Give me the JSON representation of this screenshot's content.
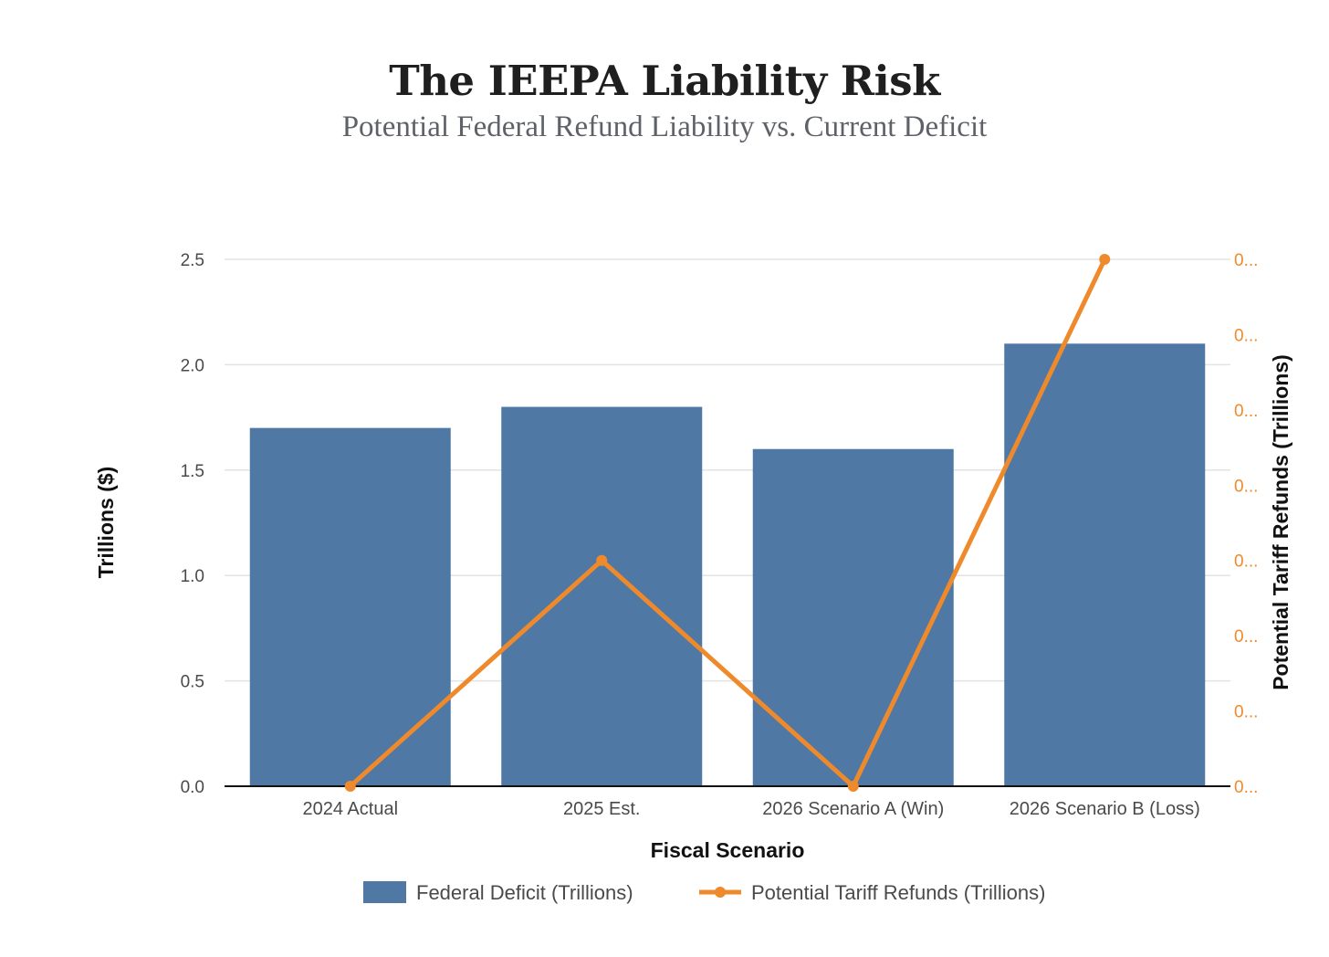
{
  "header": {
    "title": "The IEEPA Liability Risk",
    "subtitle": "Potential Federal Refund Liability vs. Current Deficit"
  },
  "colors": {
    "bar": "#4f78a5",
    "line": "#ef8a2c",
    "grid": "#e3e3e3",
    "axis": "#111111"
  },
  "chart_data": {
    "type": "bar",
    "title": "The IEEPA Liability Risk",
    "subtitle": "Potential Federal Refund Liability vs. Current Deficit",
    "xlabel": "Fiscal Scenario",
    "ylabel": "Trillions ($)",
    "y2label": "Potential Tariff Refunds (Trillions)",
    "categories": [
      "2024 Actual",
      "2025 Est.",
      "2026 Scenario A (Win)",
      "2026 Scenario B (Loss)"
    ],
    "ylim": [
      0,
      2.5
    ],
    "yticks": [
      "0.0",
      "0.5",
      "1.0",
      "1.5",
      "2.0",
      "2.5"
    ],
    "y2lim": [
      0,
      0.175
    ],
    "y2ticks": [
      "0...",
      "0...",
      "0...",
      "0...",
      "0...",
      "0...",
      "0...",
      "0..."
    ],
    "series": [
      {
        "name": "Federal Deficit (Trillions)",
        "type": "bar",
        "axis": "left",
        "values": [
          1.7,
          1.8,
          1.6,
          2.1
        ]
      },
      {
        "name": "Potential Tariff Refunds (Trillions)",
        "type": "line",
        "axis": "right",
        "values": [
          0,
          0.075,
          0,
          0.175
        ]
      }
    ],
    "legend": [
      "Federal Deficit (Trillions)",
      "Potential Tariff Refunds (Trillions)"
    ],
    "legend_position": "bottom",
    "grid": true
  }
}
